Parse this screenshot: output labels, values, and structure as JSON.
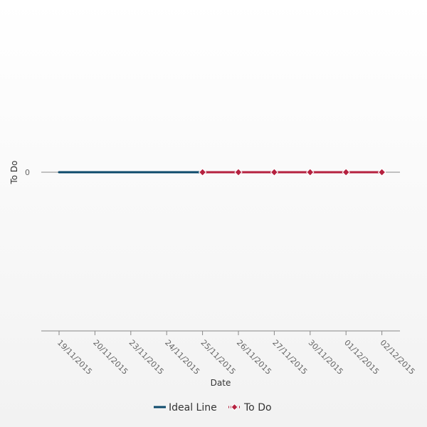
{
  "chart_data": {
    "type": "line",
    "title": "",
    "xlabel": "Date",
    "ylabel": "To Do",
    "categories": [
      "19/11/2015",
      "20/11/2015",
      "23/11/2015",
      "24/11/2015",
      "25/11/2015",
      "26/11/2015",
      "27/11/2015",
      "30/11/2015",
      "01/12/2015",
      "02/12/2015"
    ],
    "yticks": [
      0
    ],
    "grid": false,
    "legend_position": "bottom",
    "series": [
      {
        "name": "Ideal Line",
        "color": "#0d4a6b",
        "marker": "none",
        "values": [
          0,
          0,
          0,
          0,
          0,
          null,
          null,
          null,
          null,
          null
        ]
      },
      {
        "name": "To Do",
        "color": "#b5213f",
        "marker": "diamond",
        "values": [
          null,
          null,
          null,
          null,
          0,
          0,
          0,
          0,
          0,
          0
        ]
      }
    ]
  }
}
